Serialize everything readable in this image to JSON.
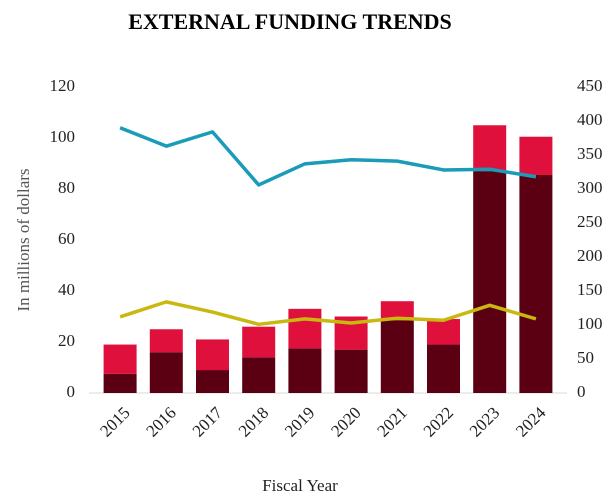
{
  "chart_data": {
    "type": "bar",
    "title": "EXTERNAL FUNDING TRENDS",
    "xlabel": "Fiscal Year",
    "ylabel": "In millions of dollars",
    "categories": [
      "2015",
      "2016",
      "2017",
      "2018",
      "2019",
      "2020",
      "2021",
      "2022",
      "2023",
      "2024"
    ],
    "stacked": true,
    "series": [
      {
        "color": "#5a0012",
        "values": [
          7.5,
          16,
          9,
          14,
          17.5,
          17,
          28.5,
          19,
          87,
          85.5
        ]
      },
      {
        "color": "#e0103c",
        "values": [
          11.5,
          9,
          12,
          12,
          15.5,
          13,
          7.5,
          10,
          18,
          15
        ]
      },
      {
        "type": "line",
        "axis": "y2",
        "color": "#1a9bb8",
        "values": [
          390,
          363,
          384,
          306,
          337,
          343,
          341,
          328,
          329,
          318
        ]
      },
      {
        "type": "line",
        "axis": "y2",
        "color": "#c9b80f",
        "values": [
          112,
          134,
          119,
          101,
          109,
          103,
          110,
          107,
          129,
          109
        ]
      }
    ],
    "ylim": [
      0,
      120
    ],
    "yticks": [
      0,
      20,
      40,
      60,
      80,
      100,
      120
    ],
    "y2lim": [
      0,
      450
    ],
    "y2ticks": [
      0,
      50,
      100,
      150,
      200,
      250,
      300,
      350,
      400,
      450
    ],
    "grid": false
  }
}
